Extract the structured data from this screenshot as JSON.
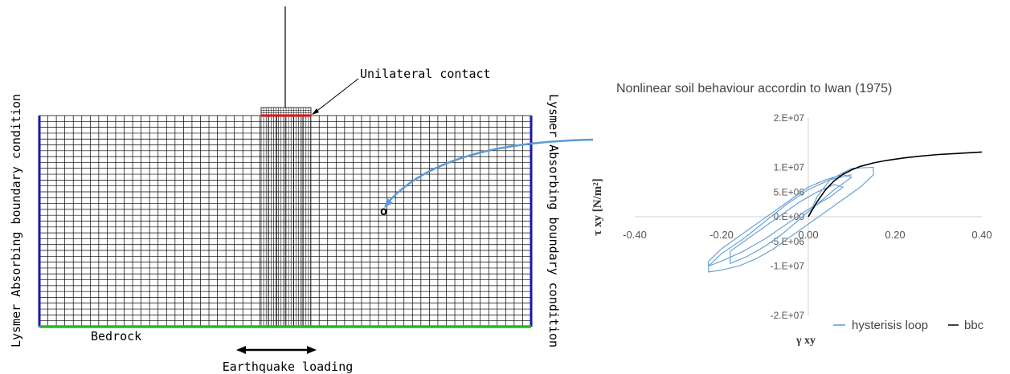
{
  "mesh": {
    "contact_label": "Unilateral contact",
    "left_boundary_label": "Lysmer Absorbing boundary condition",
    "right_boundary_label": "Lysmer Absorbing boundary condition",
    "bedrock_label": "Bedrock",
    "loading_label": "Earthquake loading",
    "point_label": "o",
    "colors": {
      "boundary": "#1a1aa8",
      "bedrock": "#22bb22",
      "contact": "#e01010",
      "mesh": "#000000",
      "arrow": "#5b9bd5"
    }
  },
  "chart_data": {
    "type": "line",
    "title": "Nonlinear soil behaviour accordin to Iwan (1975)",
    "xlabel": "γ xy",
    "ylabel": "τ xy [N/m²]",
    "xlim": [
      -0.4,
      0.4
    ],
    "ylim": [
      -20000000.0,
      20000000.0
    ],
    "x_ticks": [
      {
        "value": -0.4,
        "label": "-0.40"
      },
      {
        "value": -0.2,
        "label": "-0.20"
      },
      {
        "value": 0.0,
        "label": "0.00"
      },
      {
        "value": 0.2,
        "label": "0.20"
      },
      {
        "value": 0.4,
        "label": "0.40"
      }
    ],
    "y_ticks": [
      {
        "value": 20000000.0,
        "label": "2.E+07"
      },
      {
        "value": 10000000.0,
        "label": "1.E+07"
      },
      {
        "value": 5000000.0,
        "label": "5.E+06"
      },
      {
        "value": 0.0,
        "label": "0.E+00"
      },
      {
        "value": -5000000.0,
        "label": "-5.E+06"
      },
      {
        "value": -10000000.0,
        "label": "-1.E+07"
      },
      {
        "value": -20000000.0,
        "label": "-2.E+07"
      }
    ],
    "legend_position": "bottom-right",
    "series": [
      {
        "name": "hysterisis loop",
        "color": "#5b9bd5",
        "x": [
          0.0,
          0.02,
          0.05,
          0.1,
          0.15,
          0.15,
          0.12,
          0.08,
          0.04,
          0.0,
          -0.04,
          -0.08,
          -0.12,
          -0.16,
          -0.2,
          -0.23,
          -0.23,
          -0.2,
          -0.16,
          -0.12,
          -0.08,
          -0.04,
          0.0,
          0.04,
          0.08,
          0.1,
          0.06,
          0.02,
          -0.02,
          -0.06,
          -0.1,
          -0.14,
          -0.18,
          -0.18,
          -0.14,
          -0.1,
          -0.06,
          -0.02,
          0.02,
          0.06,
          0.08,
          0.05,
          0.0,
          -0.05,
          -0.1,
          -0.15,
          -0.2,
          -0.23,
          -0.2,
          -0.15,
          -0.1,
          -0.05,
          0.0,
          0.05,
          0.1
        ],
        "y": [
          0.0,
          4000000.0,
          7500000.0,
          9800000.0,
          10000000.0,
          8500000.0,
          6000000.0,
          3500000.0,
          1000000.0,
          -1500000.0,
          -4000000.0,
          -6500000.0,
          -8500000.0,
          -10000000.0,
          -10800000.0,
          -11200000.0,
          -9000000.0,
          -6500000.0,
          -4000000.0,
          -1500000.0,
          1000000.0,
          3500000.0,
          6000000.0,
          7500000.0,
          8500000.0,
          8000000.0,
          5500000.0,
          2500000.0,
          -500000.0,
          -3500000.0,
          -6000000.0,
          -8000000.0,
          -9500000.0,
          -7000000.0,
          -4500000.0,
          -2000000.0,
          500000.0,
          3000000.0,
          5000000.0,
          6500000.0,
          6000000.0,
          4000000.0,
          1500000.0,
          -1500000.0,
          -4500000.0,
          -7000000.0,
          -9000000.0,
          -10000000.0,
          -7500000.0,
          -4500000.0,
          -1000000.0,
          2500000.0,
          5500000.0,
          7500000.0,
          8500000.0
        ]
      },
      {
        "name": "bbc",
        "color": "#000000",
        "x": [
          0.0,
          0.02,
          0.04,
          0.06,
          0.08,
          0.1,
          0.12,
          0.15,
          0.18,
          0.22,
          0.26,
          0.3,
          0.34,
          0.38,
          0.4
        ],
        "y": [
          0.0,
          3000000.0,
          5500000.0,
          7300000.0,
          8600000.0,
          9500000.0,
          10200000.0,
          10900000.0,
          11400000.0,
          11900000.0,
          12300000.0,
          12600000.0,
          12800000.0,
          13000000.0,
          13100000.0
        ]
      }
    ]
  }
}
